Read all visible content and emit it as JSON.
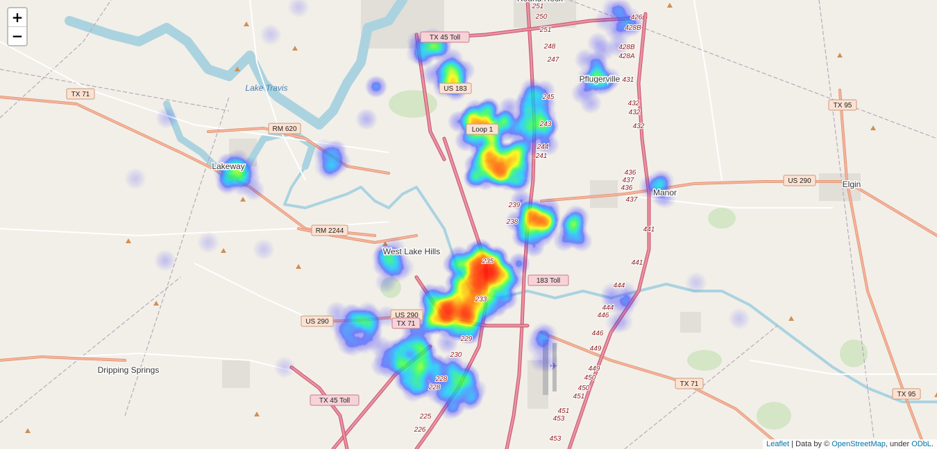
{
  "map": {
    "zoom_in_label": "+",
    "zoom_out_label": "−",
    "attribution": {
      "leaflet": "Leaflet",
      "sep": " | Data by © ",
      "osm": "OpenStreetMap",
      "under": ", under ",
      "odbl": "ODbL",
      "end": "."
    },
    "places": [
      "Round Rock",
      "Pflugerville",
      "Lakeway",
      "West Lake Hills",
      "Manor",
      "Elgin",
      "Dripping Springs"
    ],
    "water": [
      "Lake Travis"
    ],
    "shields": [
      "TX 45 Toll",
      "US 183",
      "TX 71",
      "RM 620",
      "RM 2244",
      "US 290",
      "US 290",
      "TX 71",
      "183 Toll",
      "TX 95",
      "TX 95",
      "TX 71",
      "TX 45 Toll",
      "US 290",
      "Loop 1"
    ],
    "exits": [
      "251",
      "250",
      "251",
      "248",
      "247",
      "426",
      "428B",
      "428B",
      "428A",
      "431",
      "432",
      "432",
      "432",
      "245",
      "243",
      "244",
      "241",
      "436",
      "437",
      "436",
      "437",
      "441",
      "441",
      "444",
      "444",
      "446",
      "446",
      "449",
      "449",
      "450",
      "450",
      "451",
      "451",
      "453",
      "453",
      "230",
      "228",
      "225",
      "226",
      "235",
      "238",
      "239",
      "233",
      "229",
      "228"
    ],
    "colors": {
      "land": "#f2efe9",
      "water": "#aad3df",
      "park": "#c8e3b5",
      "motorway": "#e892a2",
      "trunk": "#f9b29c",
      "heat_low": "#4b4bff",
      "heat_mid": "#22ff55",
      "heat_high": "#ff0000"
    }
  }
}
